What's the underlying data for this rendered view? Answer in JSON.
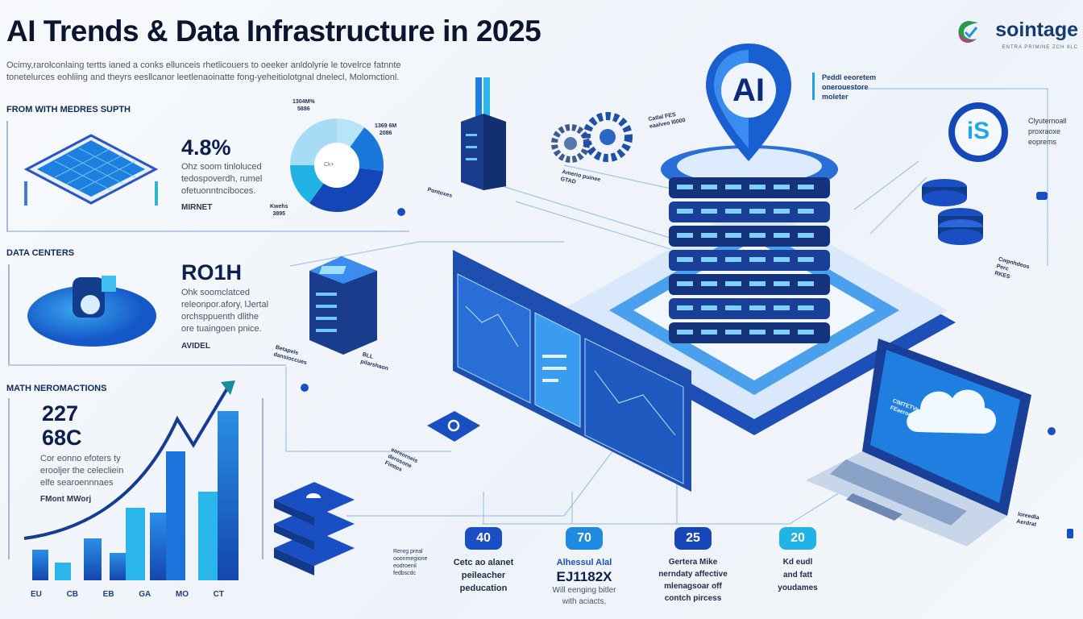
{
  "header": {
    "title": "AI Trends & Data Infrastructure in 2025",
    "intro_line1": "Ocimy,rarolconlaing tertts ianed a conks ellunceis rhetlicouers to oeeker anldolyrie le tovelrce fatnnte",
    "intro_line2": "tonetelurces eohliing and theyrs eesllcanor leetlenaoinatte fong-yeheitiolotgnal dnelecl, Molomctionl."
  },
  "logo": {
    "name": "sointage",
    "tagline": "ENTRA PRIMINE ZCH 9LC"
  },
  "sections": [
    {
      "heading": "FROM WITH MEDRES SUPTH",
      "stat": "4.8%",
      "description": [
        "Ohz soom tinloluced",
        "tedospoverdh, rumel",
        "ofetuonntnciboces."
      ],
      "tag": "MIRNET"
    },
    {
      "heading": "DATA CENTERS",
      "stat": "RO1H",
      "description": [
        "Ohk soomclatced",
        "releonpor.afory, lJertal",
        "orchsppuenth dlithe",
        "ore tuaingoen pnice."
      ],
      "tag": "AVIDEL"
    },
    {
      "heading": "MATH NEROMACTIONS",
      "stat_line1": "227",
      "stat_line2": "68C",
      "description": [
        "Cor eonno efoters ty",
        "erooljer the celecliein",
        "elfe searoennnaes"
      ],
      "tag": "FMont MWorj"
    }
  ],
  "donut": {
    "labels": [
      {
        "line1": "1304M%",
        "line2": "5886"
      },
      {
        "line1": "1369 6M",
        "line2": "2086"
      },
      {
        "line1": "Kwehs",
        "line2": "3895"
      }
    ],
    "center_label": "Ck+"
  },
  "bar_axis_labels": [
    "EU",
    "CB",
    "EB",
    "GA",
    "MO",
    "CT"
  ],
  "callouts": {
    "gears": [
      "Amerio puinee",
      "GTAD"
    ],
    "server_top": [
      "Catlal FES",
      "eaalveo l0000"
    ],
    "right_top": [
      "Peddl eeoretem",
      "onerouestore",
      "moleter"
    ],
    "right_mid": [
      "Clyuternoall",
      "proxraoxe",
      "eoprems"
    ],
    "right_small": [
      "Cwpnhdeos",
      "Perc",
      "RKES"
    ],
    "left_small": [
      "Betapels",
      "dansioccues"
    ],
    "mid_small": [
      "BLL",
      "pilarshaon"
    ],
    "bottom_left": [
      "Renrg preal",
      "ooonmegione",
      "eodroenil",
      "fedbscdc"
    ],
    "chart_side": [
      "eoreorneis",
      "derosone",
      "Fimtes"
    ],
    "laptop_side": [
      "CIMTETVeah",
      "FEaeroca",
      "loreedla"
    ],
    "pins": [
      "Pontoxes",
      "Aerdrat"
    ]
  },
  "stats": [
    {
      "value": "40",
      "color": "#1a4fc4",
      "lines": [
        "Cetc ao alanet",
        "peileacher",
        "peducation"
      ]
    },
    {
      "value": "70",
      "color": "#1f8be0",
      "title": "Alhessul Alal",
      "big": "EJ1182X",
      "lines": [
        "Will eenging bitler",
        "with aciacts."
      ]
    },
    {
      "value": "25",
      "color": "#1646b8",
      "lines": [
        "Gertera Mike",
        "nerndaty affective",
        "mlenagsoar off",
        "contch pircess"
      ]
    },
    {
      "value": "20",
      "color": "#22b3e6",
      "lines": [
        "Kd eudl",
        "and fatt",
        "youdames"
      ]
    }
  ],
  "central": {
    "pin_label": "AI",
    "badge_label": "iS"
  },
  "colors": {
    "primary": "#1a4fc4",
    "accent": "#22b3e6",
    "dark": "#0c1f4d"
  },
  "icons": [
    "ai-pin-icon",
    "gear-icon",
    "database-icon",
    "cloud-icon",
    "server-icon",
    "chip-icon",
    "trend-arrow-icon",
    "info-dot-icon"
  ]
}
